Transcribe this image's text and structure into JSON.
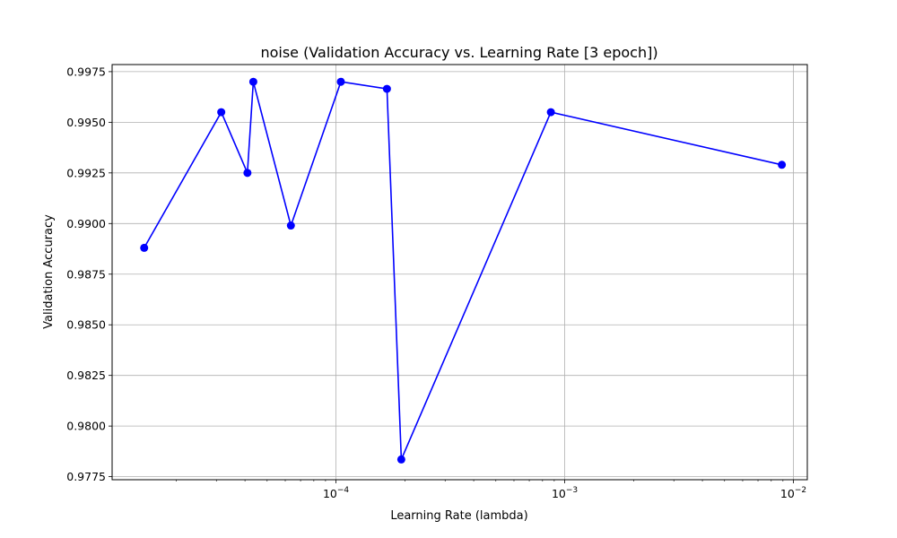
{
  "chart_data": {
    "type": "line",
    "title": "noise (Validation Accuracy vs. Learning Rate [3 epoch])",
    "xlabel": "Learning Rate (lambda)",
    "ylabel": "Validation Accuracy",
    "x_scale": "log",
    "xlim": [
      1.05e-05,
      0.0115
    ],
    "ylim": [
      0.97735,
      0.99785
    ],
    "grid": true,
    "x_ticks": [
      {
        "value": 0.0001,
        "label": "10",
        "exp": "−4"
      },
      {
        "value": 0.001,
        "label": "10",
        "exp": "−3"
      },
      {
        "value": 0.01,
        "label": "10",
        "exp": "−2"
      }
    ],
    "y_ticks": [
      0.9775,
      0.98,
      0.9825,
      0.985,
      0.9875,
      0.99,
      0.9925,
      0.995,
      0.9975
    ],
    "y_tick_labels": [
      "0.9775",
      "0.9800",
      "0.9825",
      "0.9850",
      "0.9875",
      "0.9900",
      "0.9925",
      "0.9950",
      "0.9975"
    ],
    "series": [
      {
        "color": "#0000ff",
        "marker": "circle",
        "points": [
          {
            "x": 1.45e-05,
            "y": 0.9888
          },
          {
            "x": 3.15e-05,
            "y": 0.9955
          },
          {
            "x": 4.1e-05,
            "y": 0.9925
          },
          {
            "x": 4.35e-05,
            "y": 0.997
          },
          {
            "x": 6.35e-05,
            "y": 0.9899
          },
          {
            "x": 0.000105,
            "y": 0.997
          },
          {
            "x": 0.000167,
            "y": 0.99665
          },
          {
            "x": 0.000193,
            "y": 0.97835
          },
          {
            "x": 0.00087,
            "y": 0.9955
          },
          {
            "x": 0.0089,
            "y": 0.9929
          }
        ]
      }
    ]
  }
}
